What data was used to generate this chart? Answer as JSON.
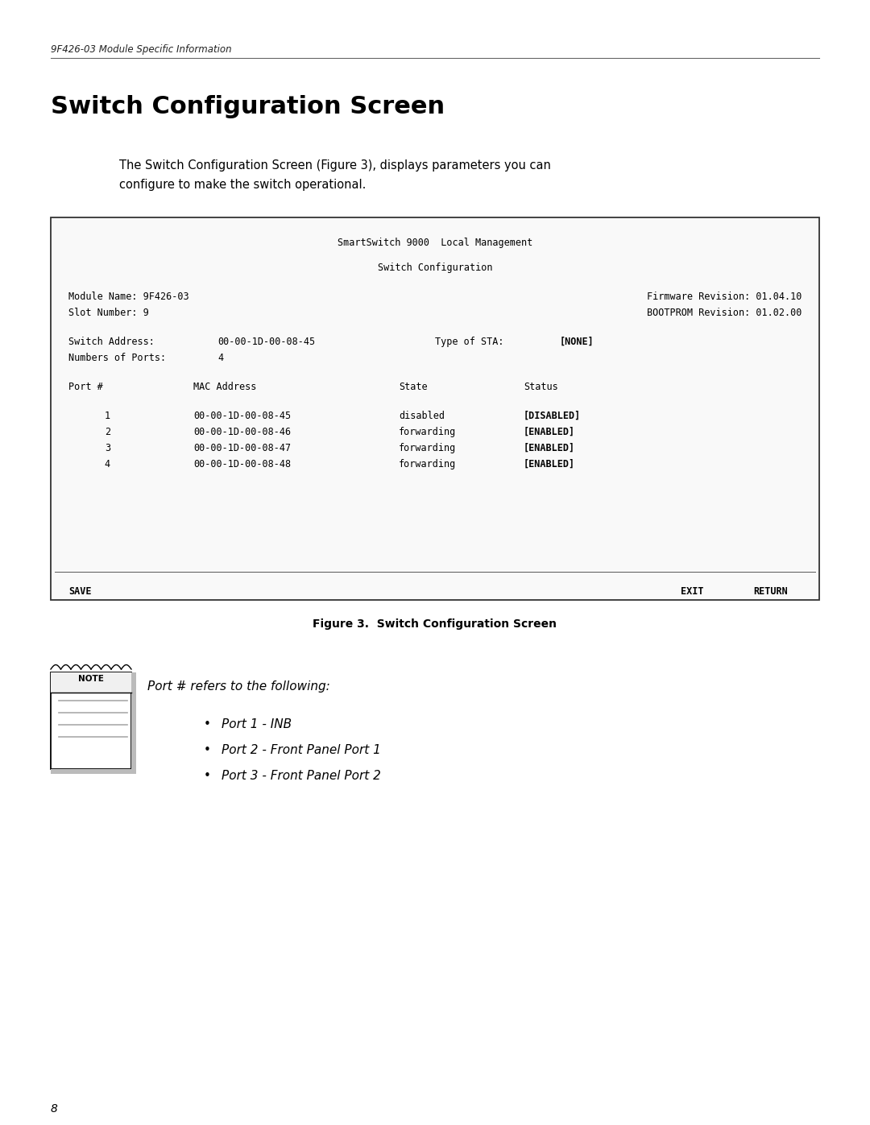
{
  "page_width": 10.8,
  "page_height": 13.97,
  "bg_color": "#ffffff",
  "header_text": "9F426-03 Module Specific Information",
  "title": "Switch Configuration Screen",
  "intro_line1": "The Switch Configuration Screen (Figure 3), displays parameters you can",
  "intro_line2": "configure to make the switch operational.",
  "figure_caption": "Figure 3.  Switch Configuration Screen",
  "screen_title1": "SmartSwitch 9000  Local Management",
  "screen_title2": "Switch Configuration",
  "screen_line1a": "Module Name: 9F426-03",
  "screen_line1b": "Firmware Revision: 01.04.10",
  "screen_line2a": "Slot Number: 9",
  "screen_line2b": "BOOTPROM Revision: 01.02.00",
  "screen_addr_label": "Switch Address:",
  "screen_addr_val": "00-00-1D-00-08-45",
  "screen_sta_label": "Type of STA:",
  "screen_sta_val": "[NONE]",
  "screen_ports_label": "Numbers of Ports:",
  "screen_ports_val": "4",
  "screen_col_port": "Port #",
  "screen_col_mac": "MAC Address",
  "screen_col_state": "State",
  "screen_col_status": "Status",
  "ports": [
    {
      "num": "1",
      "mac": "00-00-1D-00-08-45",
      "state": "disabled",
      "status": "[DISABLED]"
    },
    {
      "num": "2",
      "mac": "00-00-1D-00-08-46",
      "state": "forwarding",
      "status": "[ENABLED]"
    },
    {
      "num": "3",
      "mac": "00-00-1D-00-08-47",
      "state": "forwarding",
      "status": "[ENABLED]"
    },
    {
      "num": "4",
      "mac": "00-00-1D-00-08-48",
      "state": "forwarding",
      "status": "[ENABLED]"
    }
  ],
  "screen_save": "SAVE",
  "screen_exit": "EXIT",
  "screen_return": "RETURN",
  "note_header": "Port # refers to the following:",
  "note_items": [
    "Port 1 - INB",
    "Port 2 - Front Panel Port 1",
    "Port 3 - Front Panel Port 2"
  ],
  "page_number": "8",
  "header_fontsize": 8.5,
  "title_fontsize": 22,
  "intro_fontsize": 10.5,
  "screen_fontsize": 8.5,
  "caption_fontsize": 10,
  "note_fontsize": 11,
  "page_num_fontsize": 10
}
